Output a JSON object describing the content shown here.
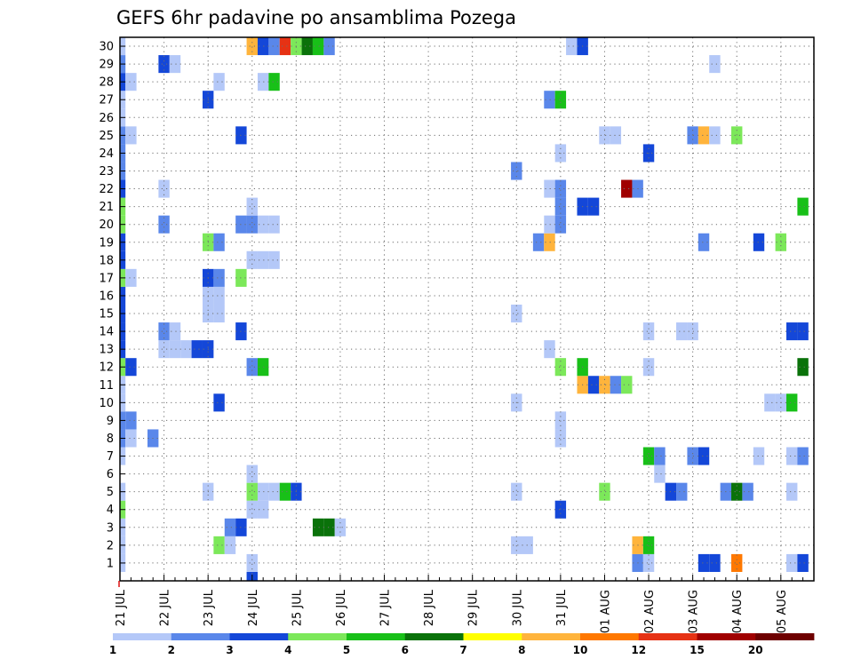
{
  "chart_data": {
    "type": "heatmap",
    "title": "GEFS 6hr padavine po ansamblima Pozega",
    "x_tick_labels": [
      "21 JUL",
      "22 JUL",
      "23 JUL",
      "24 JUL",
      "25 JUL",
      "26 JUL",
      "27 JUL",
      "28 JUL",
      "29 JUL",
      "30 JUL",
      "31 JUL",
      "01 AUG",
      "02 AUG",
      "03 AUG",
      "04 AUG",
      "05 AUG"
    ],
    "y_tick_labels": [
      "1",
      "2",
      "3",
      "4",
      "5",
      "6",
      "7",
      "8",
      "9",
      "10",
      "11",
      "12",
      "13",
      "14",
      "15",
      "16",
      "17",
      "18",
      "19",
      "20",
      "21",
      "22",
      "23",
      "24",
      "25",
      "26",
      "27",
      "28",
      "29",
      "30"
    ],
    "colorbar": {
      "labels": [
        "1",
        "2",
        "3",
        "4",
        "5",
        "6",
        "7",
        "8",
        "10",
        "12",
        "15",
        "20"
      ],
      "colors": [
        "#b4c8f8",
        "#5a87ea",
        "#1447d8",
        "#7ce85a",
        "#18c018",
        "#0a720a",
        "#ffff00",
        "#ffb43c",
        "#ff7800",
        "#e63214",
        "#a00000",
        "#6e0000"
      ]
    },
    "grid": true,
    "step_hours": 6,
    "cells": [
      {
        "x": 0,
        "y": 1,
        "level": 1
      },
      {
        "x": 0,
        "y": 2,
        "level": 1
      },
      {
        "x": 0,
        "y": 3,
        "level": 1
      },
      {
        "x": 0,
        "y": 4,
        "level": 4
      },
      {
        "x": 0,
        "y": 5,
        "level": 1
      },
      {
        "x": 0,
        "y": 7,
        "level": 1
      },
      {
        "x": 0,
        "y": 8,
        "level": 2
      },
      {
        "x": 0,
        "y": 9,
        "level": 2
      },
      {
        "x": 0,
        "y": 10,
        "level": 1
      },
      {
        "x": 0,
        "y": 11,
        "level": 1
      },
      {
        "x": 0,
        "y": 12,
        "level": 4
      },
      {
        "x": 0,
        "y": 13,
        "level": 3
      },
      {
        "x": 0,
        "y": 14,
        "level": 3
      },
      {
        "x": 0,
        "y": 15,
        "level": 3
      },
      {
        "x": 0,
        "y": 16,
        "level": 3
      },
      {
        "x": 0,
        "y": 17,
        "level": 4
      },
      {
        "x": 0,
        "y": 18,
        "level": 3
      },
      {
        "x": 0,
        "y": 19,
        "level": 3
      },
      {
        "x": 0,
        "y": 20,
        "level": 4
      },
      {
        "x": 0,
        "y": 21,
        "level": 4
      },
      {
        "x": 0,
        "y": 22,
        "level": 3
      },
      {
        "x": 0,
        "y": 23,
        "level": 2
      },
      {
        "x": 0,
        "y": 24,
        "level": 2
      },
      {
        "x": 0,
        "y": 25,
        "level": 2
      },
      {
        "x": 0,
        "y": 26,
        "level": 1
      },
      {
        "x": 0,
        "y": 27,
        "level": 1
      },
      {
        "x": 0,
        "y": 28,
        "level": 3
      },
      {
        "x": 0,
        "y": 29,
        "level": 2
      },
      {
        "x": 0,
        "y": 30,
        "level": 1
      },
      {
        "x": 1,
        "y": 8,
        "level": 1
      },
      {
        "x": 1,
        "y": 9,
        "level": 2
      },
      {
        "x": 1,
        "y": 12,
        "level": 3
      },
      {
        "x": 1,
        "y": 17,
        "level": 1
      },
      {
        "x": 1,
        "y": 25,
        "level": 1
      },
      {
        "x": 1,
        "y": 28,
        "level": 1
      },
      {
        "x": 3,
        "y": 8,
        "level": 2
      },
      {
        "x": 4,
        "y": 13,
        "level": 1
      },
      {
        "x": 4,
        "y": 14,
        "level": 2
      },
      {
        "x": 4,
        "y": 20,
        "level": 2
      },
      {
        "x": 4,
        "y": 22,
        "level": 1
      },
      {
        "x": 4,
        "y": 29,
        "level": 3
      },
      {
        "x": 5,
        "y": 13,
        "level": 1
      },
      {
        "x": 5,
        "y": 14,
        "level": 1
      },
      {
        "x": 5,
        "y": 29,
        "level": 1
      },
      {
        "x": 6,
        "y": 13,
        "level": 1
      },
      {
        "x": 7,
        "y": 13,
        "level": 3
      },
      {
        "x": 8,
        "y": 13,
        "level": 3
      },
      {
        "x": 8,
        "y": 15,
        "level": 1
      },
      {
        "x": 8,
        "y": 5,
        "level": 1
      },
      {
        "x": 8,
        "y": 16,
        "level": 1
      },
      {
        "x": 8,
        "y": 17,
        "level": 3
      },
      {
        "x": 8,
        "y": 19,
        "level": 4
      },
      {
        "x": 8,
        "y": 27,
        "level": 3
      },
      {
        "x": 9,
        "y": 2,
        "level": 4
      },
      {
        "x": 9,
        "y": 10,
        "level": 3
      },
      {
        "x": 9,
        "y": 15,
        "level": 1
      },
      {
        "x": 9,
        "y": 16,
        "level": 1
      },
      {
        "x": 9,
        "y": 17,
        "level": 2
      },
      {
        "x": 9,
        "y": 19,
        "level": 2
      },
      {
        "x": 9,
        "y": 28,
        "level": 1
      },
      {
        "x": 10,
        "y": 2,
        "level": 1
      },
      {
        "x": 10,
        "y": 3,
        "level": 2
      },
      {
        "x": 11,
        "y": 3,
        "level": 3
      },
      {
        "x": 11,
        "y": 14,
        "level": 3
      },
      {
        "x": 11,
        "y": 17,
        "level": 4
      },
      {
        "x": 11,
        "y": 20,
        "level": 2
      },
      {
        "x": 11,
        "y": 25,
        "level": 3
      },
      {
        "x": 12,
        "y": 0,
        "level": 3
      },
      {
        "x": 12,
        "y": 1,
        "level": 1
      },
      {
        "x": 12,
        "y": 4,
        "level": 1
      },
      {
        "x": 12,
        "y": 5,
        "level": 4
      },
      {
        "x": 12,
        "y": 6,
        "level": 1
      },
      {
        "x": 12,
        "y": 12,
        "level": 2
      },
      {
        "x": 12,
        "y": 18,
        "level": 1
      },
      {
        "x": 12,
        "y": 20,
        "level": 2
      },
      {
        "x": 12,
        "y": 21,
        "level": 1
      },
      {
        "x": 12,
        "y": 30,
        "level": 8
      },
      {
        "x": 13,
        "y": 4,
        "level": 1
      },
      {
        "x": 13,
        "y": 5,
        "level": 1
      },
      {
        "x": 13,
        "y": 12,
        "level": 5
      },
      {
        "x": 13,
        "y": 18,
        "level": 1
      },
      {
        "x": 13,
        "y": 20,
        "level": 1
      },
      {
        "x": 13,
        "y": 28,
        "level": 1
      },
      {
        "x": 13,
        "y": 30,
        "level": 3
      },
      {
        "x": 14,
        "y": 5,
        "level": 1
      },
      {
        "x": 14,
        "y": 18,
        "level": 1
      },
      {
        "x": 14,
        "y": 20,
        "level": 1
      },
      {
        "x": 14,
        "y": 28,
        "level": 5
      },
      {
        "x": 14,
        "y": 30,
        "level": 2
      },
      {
        "x": 15,
        "y": 5,
        "level": 5
      },
      {
        "x": 15,
        "y": 30,
        "level": 10
      },
      {
        "x": 16,
        "y": 5,
        "level": 3
      },
      {
        "x": 16,
        "y": 30,
        "level": 4
      },
      {
        "x": 17,
        "y": 30,
        "level": 6
      },
      {
        "x": 18,
        "y": 3,
        "level": 6
      },
      {
        "x": 18,
        "y": 30,
        "level": 5
      },
      {
        "x": 19,
        "y": 3,
        "level": 6
      },
      {
        "x": 19,
        "y": 30,
        "level": 2
      },
      {
        "x": 20,
        "y": 3,
        "level": 1
      },
      {
        "x": 36,
        "y": 2,
        "level": 1
      },
      {
        "x": 36,
        "y": 5,
        "level": 1
      },
      {
        "x": 36,
        "y": 10,
        "level": 1
      },
      {
        "x": 36,
        "y": 15,
        "level": 1
      },
      {
        "x": 36,
        "y": 23,
        "level": 2
      },
      {
        "x": 37,
        "y": 2,
        "level": 1
      },
      {
        "x": 38,
        "y": 19,
        "level": 2
      },
      {
        "x": 39,
        "y": 13,
        "level": 1
      },
      {
        "x": 39,
        "y": 19,
        "level": 8
      },
      {
        "x": 39,
        "y": 20,
        "level": 1
      },
      {
        "x": 39,
        "y": 22,
        "level": 1
      },
      {
        "x": 39,
        "y": 27,
        "level": 2
      },
      {
        "x": 40,
        "y": 4,
        "level": 3
      },
      {
        "x": 40,
        "y": 8,
        "level": 1
      },
      {
        "x": 40,
        "y": 9,
        "level": 1
      },
      {
        "x": 40,
        "y": 12,
        "level": 4
      },
      {
        "x": 40,
        "y": 20,
        "level": 2
      },
      {
        "x": 40,
        "y": 21,
        "level": 2
      },
      {
        "x": 40,
        "y": 22,
        "level": 2
      },
      {
        "x": 40,
        "y": 24,
        "level": 1
      },
      {
        "x": 40,
        "y": 27,
        "level": 5
      },
      {
        "x": 41,
        "y": 30,
        "level": 1
      },
      {
        "x": 42,
        "y": 11,
        "level": 8
      },
      {
        "x": 42,
        "y": 12,
        "level": 5
      },
      {
        "x": 42,
        "y": 21,
        "level": 3
      },
      {
        "x": 42,
        "y": 30,
        "level": 3
      },
      {
        "x": 43,
        "y": 11,
        "level": 3
      },
      {
        "x": 43,
        "y": 21,
        "level": 3
      },
      {
        "x": 44,
        "y": 5,
        "level": 4
      },
      {
        "x": 44,
        "y": 11,
        "level": 8
      },
      {
        "x": 44,
        "y": 25,
        "level": 1
      },
      {
        "x": 45,
        "y": 11,
        "level": 2
      },
      {
        "x": 45,
        "y": 25,
        "level": 1
      },
      {
        "x": 46,
        "y": 11,
        "level": 4
      },
      {
        "x": 46,
        "y": 22,
        "level": 11
      },
      {
        "x": 47,
        "y": 1,
        "level": 2
      },
      {
        "x": 47,
        "y": 2,
        "level": 8
      },
      {
        "x": 47,
        "y": 22,
        "level": 2
      },
      {
        "x": 48,
        "y": 1,
        "level": 1
      },
      {
        "x": 48,
        "y": 2,
        "level": 5
      },
      {
        "x": 48,
        "y": 7,
        "level": 5
      },
      {
        "x": 48,
        "y": 12,
        "level": 1
      },
      {
        "x": 48,
        "y": 14,
        "level": 1
      },
      {
        "x": 48,
        "y": 24,
        "level": 3
      },
      {
        "x": 49,
        "y": 6,
        "level": 1
      },
      {
        "x": 49,
        "y": 7,
        "level": 2
      },
      {
        "x": 50,
        "y": 5,
        "level": 3
      },
      {
        "x": 51,
        "y": 5,
        "level": 2
      },
      {
        "x": 51,
        "y": 14,
        "level": 1
      },
      {
        "x": 52,
        "y": 7,
        "level": 2
      },
      {
        "x": 52,
        "y": 14,
        "level": 1
      },
      {
        "x": 52,
        "y": 25,
        "level": 2
      },
      {
        "x": 53,
        "y": 1,
        "level": 3
      },
      {
        "x": 53,
        "y": 7,
        "level": 3
      },
      {
        "x": 53,
        "y": 19,
        "level": 2
      },
      {
        "x": 53,
        "y": 25,
        "level": 8
      },
      {
        "x": 54,
        "y": 1,
        "level": 3
      },
      {
        "x": 54,
        "y": 25,
        "level": 1
      },
      {
        "x": 54,
        "y": 29,
        "level": 1
      },
      {
        "x": 55,
        "y": 5,
        "level": 2
      },
      {
        "x": 56,
        "y": 1,
        "level": 9
      },
      {
        "x": 56,
        "y": 5,
        "level": 6
      },
      {
        "x": 56,
        "y": 25,
        "level": 4
      },
      {
        "x": 57,
        "y": 5,
        "level": 2
      },
      {
        "x": 58,
        "y": 7,
        "level": 1
      },
      {
        "x": 58,
        "y": 19,
        "level": 3
      },
      {
        "x": 59,
        "y": 10,
        "level": 1
      },
      {
        "x": 60,
        "y": 10,
        "level": 1
      },
      {
        "x": 60,
        "y": 19,
        "level": 4
      },
      {
        "x": 61,
        "y": 1,
        "level": 1
      },
      {
        "x": 61,
        "y": 5,
        "level": 1
      },
      {
        "x": 61,
        "y": 7,
        "level": 1
      },
      {
        "x": 61,
        "y": 10,
        "level": 5
      },
      {
        "x": 61,
        "y": 14,
        "level": 3
      },
      {
        "x": 62,
        "y": 1,
        "level": 3
      },
      {
        "x": 62,
        "y": 7,
        "level": 2
      },
      {
        "x": 62,
        "y": 12,
        "level": 6
      },
      {
        "x": 62,
        "y": 14,
        "level": 3
      },
      {
        "x": 62,
        "y": 21,
        "level": 5
      }
    ]
  }
}
